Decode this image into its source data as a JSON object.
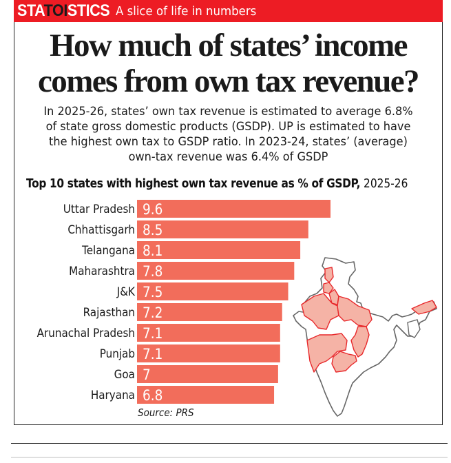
{
  "banner": {
    "brand_prefix": "STA",
    "brand_highlight": "TOI",
    "brand_suffix": "STICS",
    "tagline": "A slice of life in numbers",
    "color": "#ED1C24"
  },
  "headline": {
    "line1": "How much of states’ income",
    "line2": "comes from own tax revenue?"
  },
  "deck": {
    "lines": [
      "In 2025-26, states’ own tax revenue is estimated to average 6.8%",
      "of state gross domestic products (GSDP). UP is estimated to have",
      "the highest own tax to GSDP ratio. In 2023-24, states’ (average)",
      "own-tax revenue was 6.4% of GSDP"
    ]
  },
  "chart_data": {
    "type": "bar",
    "orientation": "horizontal",
    "title": "Top 10 states with highest own tax revenue as % of GSDP,",
    "title_suffix": "2025-26",
    "xlabel": "",
    "ylabel": "",
    "categories": [
      "Uttar Pradesh",
      "Chhattisgarh",
      "Telangana",
      "Maharashtra",
      "J&K",
      "Rajasthan",
      "Arunachal Pradesh",
      "Punjab",
      "Goa",
      "Haryana"
    ],
    "values": [
      9.6,
      8.5,
      8.1,
      7.8,
      7.5,
      7.2,
      7.1,
      7.1,
      7,
      6.8
    ],
    "value_labels": [
      "9.6",
      "8.5",
      "8.1",
      "7.8",
      "7.5",
      "7.2",
      "7.1",
      "7.1",
      "7",
      "6.8"
    ],
    "xlim": [
      0,
      9.6
    ],
    "grid": false,
    "bar_color": "#F26D5B",
    "label_color": "#ffffff",
    "source": "Source: PRS"
  },
  "map": {
    "label": "India map highlighting top 10 states",
    "highlight_fill": "#F5B3A6",
    "highlight_stroke": "#E8282B",
    "base_stroke": "#666666"
  }
}
